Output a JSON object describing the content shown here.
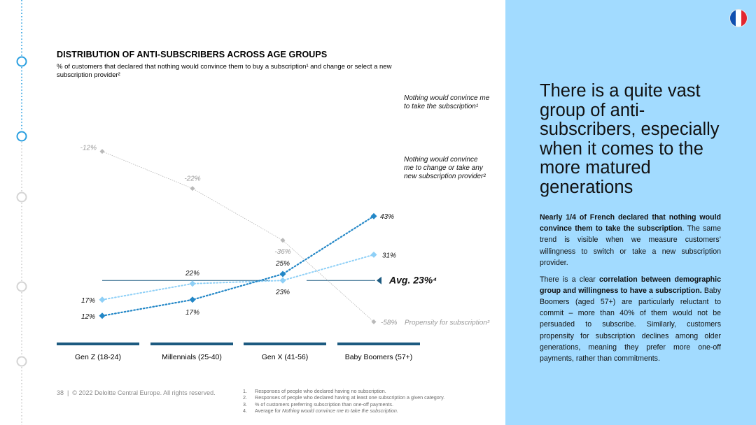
{
  "chart_data": {
    "type": "line",
    "title": "DISTRIBUTION OF ANTI-SUBSCRIBERS ACROSS AGE GROUPS",
    "subtitle": "% of customers that declared that nothing would convince them to buy a subscription¹ and change or select a new subscription provider²",
    "categories": [
      "Gen Z (18-24)",
      "Millennials (25-40)",
      "Gen X (41-56)",
      "Baby Boomers (57+)"
    ],
    "series": [
      {
        "name": "Nothing would convince me to take the subscription¹",
        "values": [
          12,
          17,
          25,
          43
        ],
        "labels": [
          "12%",
          "17%",
          "25%",
          "43%"
        ],
        "color": "#2387c7"
      },
      {
        "name": "Nothing would convince me to change or take any new subscription provider²",
        "values": [
          17,
          22,
          23,
          31
        ],
        "labels": [
          "17%",
          "22%",
          "23%",
          "31%"
        ],
        "color": "#8fd0f7"
      },
      {
        "name": "Propensity for subscription³",
        "values": [
          -12,
          -22,
          -36,
          -58
        ],
        "labels": [
          "-12%",
          "-22%",
          "-36%",
          "-58%"
        ],
        "color": "#b9b9b9"
      }
    ],
    "average": {
      "value": 23,
      "label": "Avg. 23%⁴",
      "color": "#1c5a80"
    }
  },
  "footer": {
    "page": "38",
    "copyright": "© 2022 Deloitte Central Europe. All rights reserved."
  },
  "footnotes": [
    {
      "num": "1.",
      "text": "Responses of people who declared having no subscription."
    },
    {
      "num": "2.",
      "text": "Responses of people who declared having at least one subscription a given category."
    },
    {
      "num": "3.",
      "text": "% of customers preferring subscription than one-off payments."
    },
    {
      "num": "4.",
      "text_prefix": "Average for ",
      "text_italic": "Nothing would convince me to take the subscription."
    }
  ],
  "panel": {
    "heading": "There is a quite vast group of anti-subscribers, especially when it comes to the more matured generations",
    "p1_bold": "Nearly 1/4 of French declared that nothing would convince them to take the subscription",
    "p1_rest": ". The same trend is visible when we measure customers’ willingness to switch or take a new subscription provider.",
    "p2_a": "There is a clear ",
    "p2_bold": "correlation between demographic group and willingness to have a subscription.",
    "p2_rest": " Baby Boomers (aged 57+) are particularly reluctant to commit – more than 40% of them would not be persuaded to subscribe. Similarly, customers propensity for subscription declines among older generations, meaning they prefer more one-off payments, rather than commitments."
  },
  "flag_colors": [
    "#0f4fb0",
    "#ffffff",
    "#e3262f"
  ],
  "timeline_color": "#2a9fe0"
}
